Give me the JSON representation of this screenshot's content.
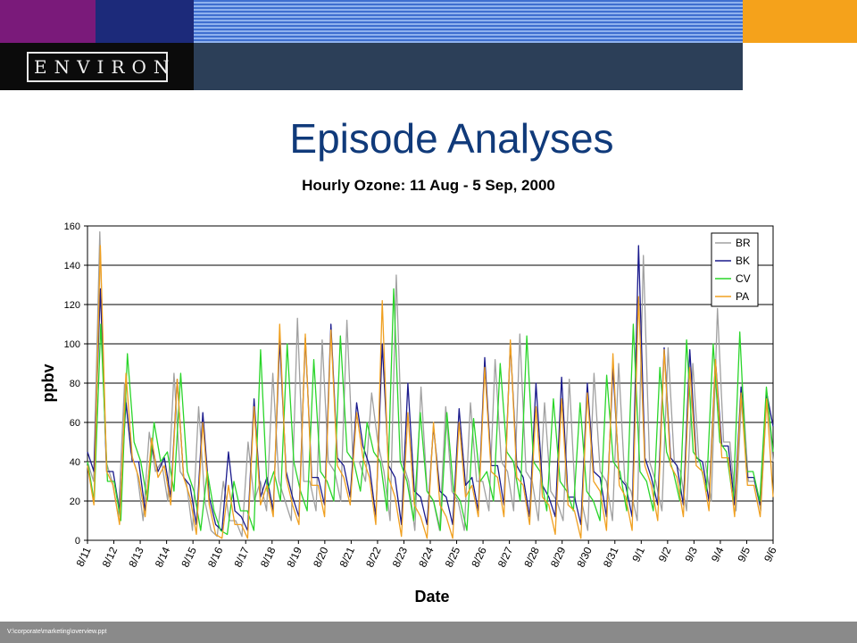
{
  "header": {
    "logo_text": "ENVIRON",
    "colors": {
      "purple": "#7a1a7a",
      "navy": "#1c2a7a",
      "blue_stripes": "#3f6fd0",
      "orange": "#f5a21b",
      "slate": "#2c3f58"
    }
  },
  "slide": {
    "title": "Episode Analyses",
    "footer_path": "V:\\corporate\\marketing\\overview.ppt"
  },
  "chart_data": {
    "type": "line",
    "title": "Hourly Ozone: 11 Aug - 5 Sep, 2000",
    "xlabel": "Date",
    "ylabel": "ppbv",
    "ylim": [
      0,
      160
    ],
    "yticks": [
      0,
      20,
      40,
      60,
      80,
      100,
      120,
      140,
      160
    ],
    "xtick_labels": [
      "8/11",
      "8/12",
      "8/13",
      "8/14",
      "8/15",
      "8/16",
      "8/17",
      "8/18",
      "8/19",
      "8/20",
      "8/21",
      "8/22",
      "8/23",
      "8/24",
      "8/25",
      "8/26",
      "8/27",
      "8/28",
      "8/29",
      "8/30",
      "8/31",
      "9/1",
      "9/2",
      "9/3",
      "9/4",
      "9/5",
      "9/6"
    ],
    "grid": "horizontal",
    "legend_position": "top-right",
    "resolution": "6-hourly samples (00,06,12,18 h), values estimated from figure",
    "series": [
      {
        "name": "BR",
        "color": "#a0a0a0",
        "values": [
          40,
          30,
          157,
          40,
          30,
          12,
          80,
          45,
          35,
          10,
          55,
          35,
          40,
          20,
          85,
          35,
          30,
          5,
          68,
          20,
          5,
          2,
          30,
          10,
          10,
          2,
          50,
          20,
          30,
          15,
          85,
          30,
          20,
          10,
          113,
          30,
          30,
          15,
          102,
          40,
          35,
          20,
          112,
          40,
          40,
          30,
          75,
          50,
          35,
          10,
          135,
          40,
          30,
          5,
          78,
          25,
          20,
          5,
          68,
          25,
          20,
          5,
          70,
          30,
          30,
          15,
          92,
          40,
          35,
          15,
          105,
          35,
          30,
          10,
          70,
          25,
          20,
          10,
          82,
          20,
          20,
          5,
          85,
          35,
          30,
          10,
          90,
          30,
          25,
          10,
          145,
          40,
          30,
          15,
          98,
          40,
          35,
          15,
          90,
          40,
          40,
          20,
          118,
          50,
          50,
          15,
          80,
          30,
          30,
          15,
          75,
          40
        ]
      },
      {
        "name": "BK",
        "color": "#1a1a8c",
        "values": [
          45,
          35,
          128,
          35,
          35,
          15,
          70,
          40,
          40,
          15,
          48,
          35,
          42,
          22,
          82,
          32,
          28,
          8,
          65,
          22,
          8,
          5,
          45,
          15,
          12,
          5,
          72,
          22,
          32,
          15,
          102,
          35,
          22,
          12,
          103,
          32,
          32,
          18,
          110,
          42,
          38,
          22,
          70,
          48,
          38,
          12,
          100,
          38,
          32,
          8,
          80,
          25,
          22,
          8,
          58,
          25,
          22,
          8,
          67,
          28,
          32,
          15,
          93,
          38,
          38,
          18,
          100,
          38,
          32,
          12,
          80,
          28,
          22,
          12,
          83,
          22,
          22,
          8,
          80,
          35,
          32,
          12,
          88,
          32,
          28,
          12,
          150,
          42,
          32,
          18,
          98,
          42,
          38,
          18,
          97,
          42,
          40,
          20,
          92,
          48,
          48,
          18,
          78,
          32,
          32,
          18,
          75,
          58
        ]
      },
      {
        "name": "CV",
        "color": "#2ad52a",
        "values": [
          40,
          20,
          110,
          30,
          30,
          10,
          95,
          50,
          40,
          20,
          60,
          40,
          45,
          25,
          85,
          35,
          25,
          5,
          35,
          15,
          5,
          3,
          30,
          15,
          15,
          5,
          97,
          25,
          35,
          20,
          100,
          40,
          25,
          15,
          92,
          35,
          30,
          20,
          104,
          45,
          40,
          25,
          60,
          45,
          40,
          15,
          128,
          40,
          30,
          10,
          65,
          25,
          20,
          5,
          65,
          25,
          20,
          5,
          62,
          30,
          35,
          20,
          90,
          45,
          40,
          20,
          104,
          40,
          35,
          15,
          72,
          30,
          25,
          15,
          70,
          25,
          20,
          10,
          84,
          40,
          35,
          15,
          110,
          35,
          30,
          15,
          88,
          45,
          35,
          20,
          102,
          45,
          40,
          25,
          100,
          50,
          45,
          20,
          106,
          35,
          35,
          20,
          78,
          45
        ]
      },
      {
        "name": "PA",
        "color": "#f0a020",
        "values": [
          38,
          18,
          150,
          35,
          28,
          8,
          85,
          42,
          32,
          12,
          52,
          32,
          38,
          18,
          82,
          32,
          22,
          3,
          60,
          18,
          3,
          1,
          28,
          8,
          8,
          1,
          68,
          18,
          28,
          12,
          110,
          32,
          18,
          8,
          105,
          28,
          28,
          12,
          107,
          38,
          32,
          18,
          65,
          42,
          32,
          8,
          122,
          32,
          22,
          2,
          65,
          18,
          12,
          1,
          60,
          18,
          12,
          1,
          60,
          22,
          28,
          12,
          88,
          35,
          32,
          12,
          102,
          32,
          28,
          8,
          68,
          22,
          18,
          3,
          72,
          18,
          15,
          1,
          75,
          30,
          25,
          5,
          95,
          28,
          22,
          5,
          124,
          38,
          28,
          10,
          97,
          38,
          32,
          12,
          88,
          38,
          35,
          15,
          92,
          42,
          42,
          12,
          75,
          28,
          28,
          12,
          72,
          22
        ]
      }
    ]
  }
}
